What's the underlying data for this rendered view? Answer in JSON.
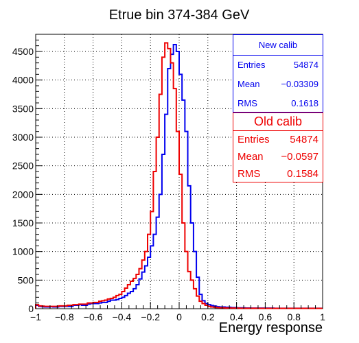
{
  "chart_data": {
    "type": "histogram",
    "title": "Etrue bin 374-384 GeV",
    "xlabel": "Energy response",
    "ylabel": "",
    "xlim": [
      -1,
      1
    ],
    "ylim": [
      0,
      4800
    ],
    "bin_width": 0.02,
    "grid": true,
    "x_ticks": [
      -1,
      -0.8,
      -0.6,
      -0.4,
      -0.2,
      0,
      0.2,
      0.4,
      0.6,
      0.8,
      1
    ],
    "x_tick_labels": [
      "−1",
      "−0.8",
      "−0.6",
      "−0.4",
      "−0.2",
      "0",
      "0.2",
      "0.4",
      "0.6",
      "0.8",
      "1"
    ],
    "y_ticks": [
      0,
      500,
      1000,
      1500,
      2000,
      2500,
      3000,
      3500,
      4000,
      4500
    ],
    "y_tick_labels": [
      "0",
      "500",
      "1000",
      "1500",
      "2000",
      "2500",
      "3000",
      "3500",
      "4000",
      "4500"
    ],
    "colors": {
      "new": "#0000ee",
      "old": "#ee0000",
      "axis": "#000000",
      "grid": "#000000"
    },
    "series": [
      {
        "name": "New calib",
        "color": "#0000ee",
        "x_start": -1.0,
        "values": [
          60,
          40,
          35,
          30,
          30,
          35,
          30,
          30,
          40,
          40,
          40,
          40,
          40,
          60,
          60,
          70,
          60,
          60,
          80,
          90,
          90,
          90,
          100,
          110,
          110,
          130,
          150,
          150,
          160,
          180,
          200,
          230,
          270,
          300,
          350,
          420,
          520,
          640,
          750,
          900,
          1100,
          1300,
          1600,
          2000,
          2700,
          3400,
          4200,
          4450,
          4620,
          4500,
          4100,
          3650,
          3100,
          2150,
          1500,
          1000,
          550,
          250,
          140,
          90,
          70,
          55,
          45,
          35,
          30,
          30,
          25,
          25,
          20,
          20,
          15,
          15,
          15,
          12,
          12,
          10,
          10,
          10,
          10,
          10,
          10,
          10,
          10,
          8,
          8,
          8,
          8,
          8,
          8,
          8,
          8,
          8,
          8,
          8,
          8,
          8,
          8,
          8,
          8,
          8
        ]
      },
      {
        "name": "Old calib",
        "color": "#ee0000",
        "x_start": -1.0,
        "values": [
          70,
          50,
          45,
          40,
          40,
          40,
          40,
          40,
          50,
          50,
          50,
          60,
          60,
          70,
          70,
          80,
          80,
          80,
          100,
          100,
          110,
          110,
          130,
          140,
          150,
          170,
          180,
          200,
          230,
          250,
          300,
          360,
          420,
          480,
          530,
          600,
          700,
          850,
          1000,
          1300,
          1700,
          2400,
          3000,
          3750,
          4400,
          4650,
          4550,
          4300,
          3850,
          3100,
          2350,
          1500,
          1000,
          650,
          500,
          350,
          220,
          130,
          90,
          60,
          40,
          30,
          25,
          20,
          15,
          15,
          12,
          12,
          10,
          10,
          10,
          8,
          8,
          8,
          8,
          8,
          8,
          8,
          6,
          6,
          6,
          6,
          6,
          6,
          6,
          6,
          6,
          6,
          6,
          6,
          6,
          6,
          6,
          6,
          6,
          6,
          6,
          6,
          6,
          6
        ]
      }
    ],
    "stats": [
      {
        "title": "New calib",
        "entries_label": "Entries",
        "entries": "54874",
        "mean_label": "Mean",
        "mean": "−0.03309",
        "rms_label": "RMS",
        "rms": "0.1618"
      },
      {
        "title": "Old calib",
        "entries_label": "Entries",
        "entries": "54874",
        "mean_label": "Mean",
        "mean": "−0.0597",
        "rms_label": "RMS",
        "rms": "0.1584"
      }
    ]
  }
}
